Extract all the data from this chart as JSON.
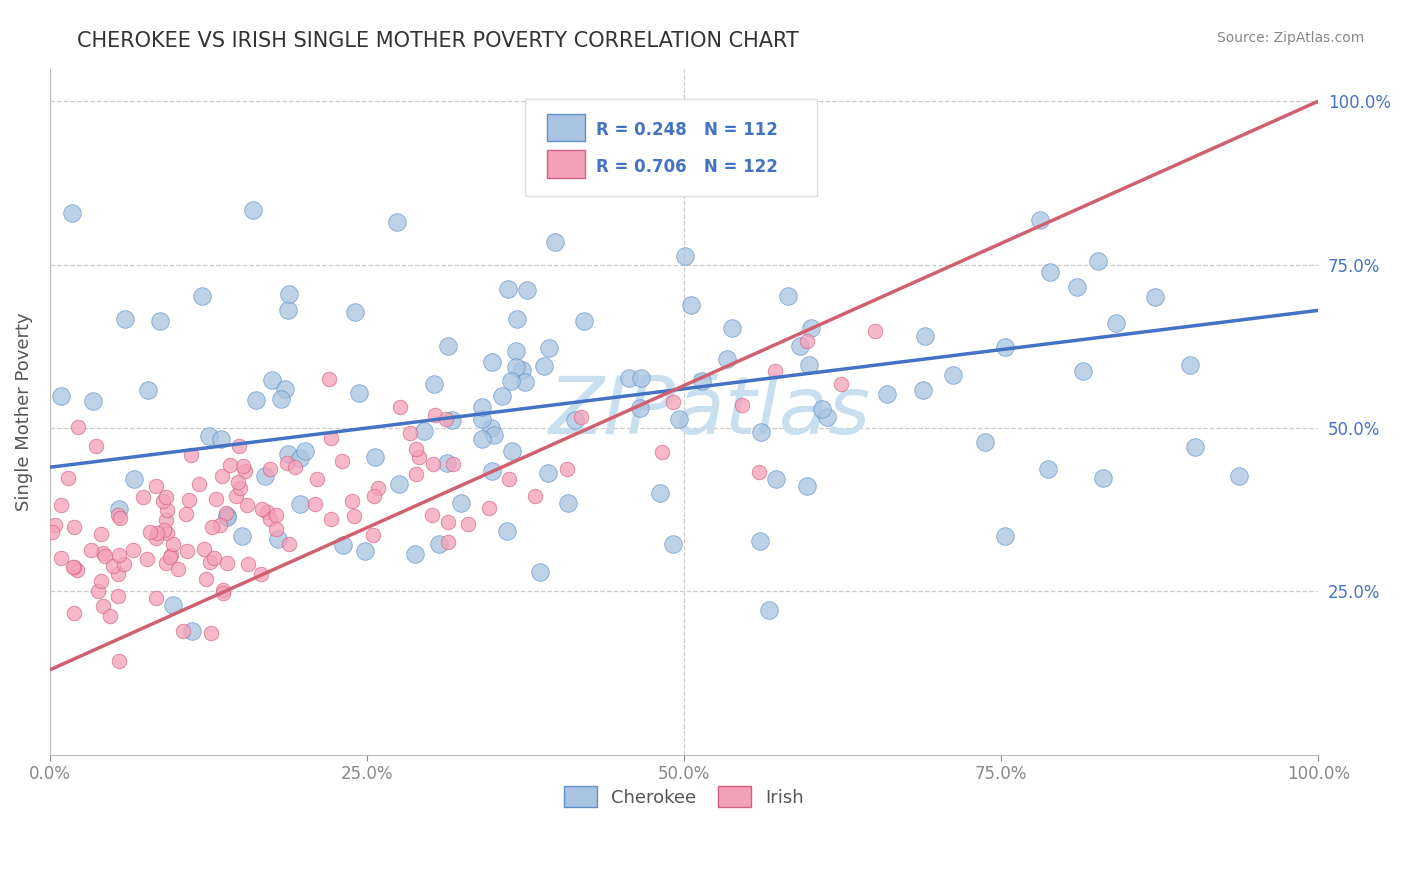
{
  "title": "CHEROKEE VS IRISH SINGLE MOTHER POVERTY CORRELATION CHART",
  "source": "Source: ZipAtlas.com",
  "ylabel": "Single Mother Poverty",
  "cherokee_R": 0.248,
  "cherokee_N": 112,
  "irish_R": 0.706,
  "irish_N": 122,
  "cherokee_color": "#a8c4e0",
  "irish_color": "#f4a0b8",
  "cherokee_edge_color": "#6090c8",
  "irish_edge_color": "#d06080",
  "cherokee_line_color": "#4472c4",
  "irish_line_color": "#d06070",
  "right_tick_color": "#4472c4",
  "legend_r_color": "#4472c4",
  "watermark_color": "#c8dff0",
  "background_color": "#ffffff",
  "grid_color": "#cccccc",
  "title_color": "#333333",
  "source_color": "#888888",
  "ylabel_color": "#555555",
  "bottom_label_color": "#555555",
  "xtick_vals": [
    0.0,
    0.25,
    0.5,
    0.75,
    1.0
  ],
  "xtick_labels": [
    "0.0%",
    "25.0%",
    "50.0%",
    "75.0%",
    "100.0%"
  ],
  "ytick_vals": [
    0.25,
    0.5,
    0.75,
    1.0
  ],
  "ytick_labels": [
    "25.0%",
    "50.0%",
    "75.0%",
    "100.0%"
  ],
  "xlim": [
    0.0,
    1.0
  ],
  "ylim": [
    0.0,
    1.05
  ],
  "cherokee_line_x0": 0.0,
  "cherokee_line_y0": 0.44,
  "cherokee_line_x1": 1.0,
  "cherokee_line_y1": 0.68,
  "irish_line_x0": 0.0,
  "irish_line_y0": 0.13,
  "irish_line_x1": 1.0,
  "irish_line_y1": 1.0,
  "seed": 77
}
